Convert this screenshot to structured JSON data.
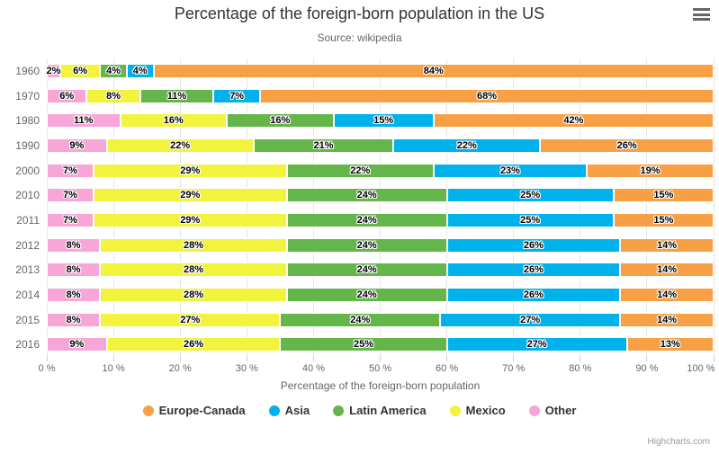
{
  "chart_data": {
    "type": "bar",
    "stacked": true,
    "orientation": "horizontal",
    "title": "Percentage of the foreign-born population in the US",
    "subtitle": "Source: wikipedia",
    "xlabel": "Percentage of the foreign-born population",
    "xlim": [
      0,
      100
    ],
    "x_ticks": [
      0,
      10,
      20,
      30,
      40,
      50,
      60,
      70,
      80,
      90,
      100
    ],
    "x_tick_suffix": " %",
    "data_label_suffix": "%",
    "grid": true,
    "legend_position": "bottom",
    "categories": [
      "1960",
      "1970",
      "1980",
      "1990",
      "2000",
      "2010",
      "2011",
      "2012",
      "2013",
      "2014",
      "2015",
      "2016"
    ],
    "series": [
      {
        "name": "Europe-Canada",
        "color": "#f8a045",
        "values": [
          84,
          68,
          42,
          26,
          19,
          15,
          15,
          14,
          14,
          14,
          14,
          13
        ]
      },
      {
        "name": "Asia",
        "color": "#00b2ec",
        "values": [
          4,
          7,
          15,
          22,
          23,
          25,
          25,
          26,
          26,
          26,
          27,
          27
        ]
      },
      {
        "name": "Latin America",
        "color": "#64b54a",
        "values": [
          4,
          11,
          16,
          21,
          22,
          24,
          24,
          24,
          24,
          24,
          24,
          25
        ]
      },
      {
        "name": "Mexico",
        "color": "#f1f33d",
        "values": [
          6,
          8,
          16,
          22,
          29,
          29,
          29,
          28,
          28,
          28,
          27,
          26
        ]
      },
      {
        "name": "Other",
        "color": "#f8a5d8",
        "values": [
          2,
          6,
          11,
          9,
          7,
          7,
          7,
          8,
          8,
          8,
          8,
          9
        ]
      }
    ],
    "stack_order_left_to_right": [
      "Other",
      "Mexico",
      "Latin America",
      "Asia",
      "Europe-Canada"
    ]
  },
  "menu": {
    "tooltip": "Chart context menu"
  },
  "credits": {
    "text": "Highcharts.com"
  }
}
